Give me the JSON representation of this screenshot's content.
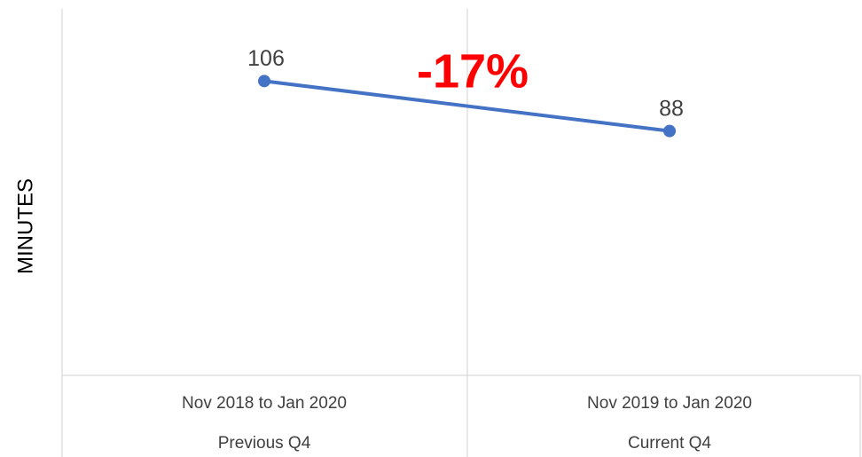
{
  "chart_data": {
    "type": "line",
    "ylabel": "MINUTES",
    "annotation": "-17%",
    "categories": [
      "Nov 2018 to Jan 2020",
      "Nov 2019 to Jan 2020"
    ],
    "category_groups": [
      "Previous Q4",
      "Current Q4"
    ],
    "values": [
      106,
      88
    ],
    "color": "#4472c4",
    "annotation_color": "#ff0000",
    "ylim": [
      0,
      132
    ],
    "data_labels": true
  }
}
